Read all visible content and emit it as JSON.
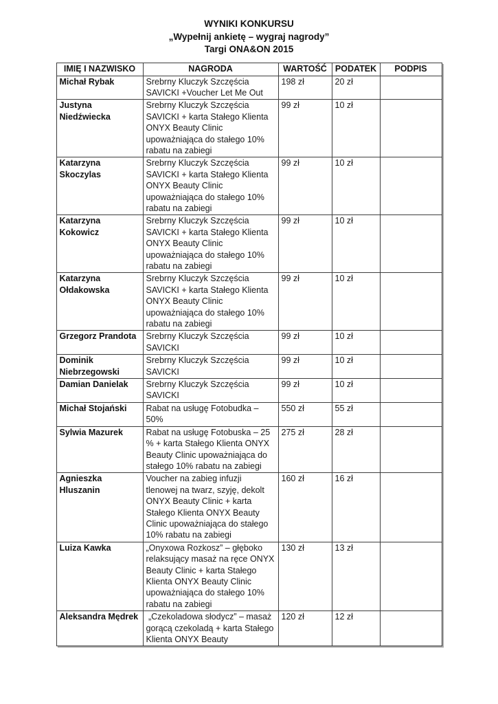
{
  "header": {
    "title": "WYNIKI KONKURSU",
    "subtitle": "„Wypełnij ankietę – wygraj nagrody”",
    "event": "Targi ONA&ON 2015"
  },
  "table": {
    "headers": [
      "IMIĘ I NAZWISKO",
      "NAGRODA",
      "WARTOŚĆ",
      "PODATEK",
      "PODPIS"
    ],
    "rows": [
      {
        "name": "Michał Rybak",
        "prize": "Srebrny Kluczyk Szczęścia SAVICKI +Voucher Let Me Out",
        "value": "198 zł",
        "tax": "20 zł",
        "signature": ""
      },
      {
        "name": "Justyna Niedźwiecka",
        "prize": "Srebrny Kluczyk Szczęścia SAVICKI + karta Stałego Klienta ONYX Beauty Clinic upoważniająca do stałego 10% rabatu na zabiegi",
        "value": "99 zł",
        "tax": "10 zł",
        "signature": ""
      },
      {
        "name": "Katarzyna Skoczylas",
        "prize": "Srebrny Kluczyk Szczęścia SAVICKI + karta Stałego Klienta ONYX Beauty Clinic upoważniająca do stałego 10% rabatu na zabiegi",
        "value": "99 zł",
        "tax": "10 zł",
        "signature": ""
      },
      {
        "name": "Katarzyna Kokowicz",
        "prize": "Srebrny Kluczyk Szczęścia SAVICKI + karta Stałego Klienta ONYX Beauty Clinic upoważniająca do stałego 10% rabatu na zabiegi",
        "value": "99 zł",
        "tax": "10 zł",
        "signature": ""
      },
      {
        "name": "Katarzyna Ołdakowska",
        "prize": "Srebrny Kluczyk Szczęścia SAVICKI + karta Stałego Klienta ONYX Beauty Clinic upoważniająca do stałego 10% rabatu na zabiegi",
        "value": "99 zł",
        "tax": "10 zł",
        "signature": ""
      },
      {
        "name": "Grzegorz Prandota",
        "prize": "Srebrny Kluczyk Szczęścia SAVICKI",
        "value": "99 zł",
        "tax": "10 zł",
        "signature": ""
      },
      {
        "name": "Dominik Niebrzegowski",
        "prize": "Srebrny Kluczyk Szczęścia SAVICKI",
        "value": "99 zł",
        "tax": "10 zł",
        "signature": ""
      },
      {
        "name": "Damian Danielak",
        "prize": "Srebrny Kluczyk Szczęścia SAVICKI",
        "value": "99 zł",
        "tax": "10 zł",
        "signature": ""
      },
      {
        "name": "Michał Stojański",
        "prize": "Rabat na usługę Fotobudka – 50%",
        "value": "550 zł",
        "tax": "55 zł",
        "signature": ""
      },
      {
        "name": "Sylwia Mazurek",
        "prize": "Rabat na usługę Fotobuska – 25 % + karta Stałego Klienta ONYX Beauty Clinic upoważniająca do stałego 10% rabatu na zabiegi",
        "value": "275 zł",
        "tax": "28 zł",
        "signature": ""
      },
      {
        "name": "Agnieszka Hluszanin",
        "prize": "Voucher na zabieg infuzji tlenowej na twarz, szyję, dekolt ONYX Beauty Clinic + karta Stałego Klienta ONYX Beauty Clinic upoważniająca do stałego 10% rabatu na zabiegi",
        "value": "160 zł",
        "tax": "16 zł",
        "signature": ""
      },
      {
        "name": "Luiza Kawka",
        "prize": "„Onyxowa Rozkosz” – głęboko relaksujący masaż na ręce ONYX Beauty Clinic + karta Stałego Klienta ONYX Beauty Clinic upoważniająca do stałego 10% rabatu na zabiegi",
        "value": "130 zł",
        "tax": "13 zł",
        "signature": ""
      },
      {
        "name": "Aleksandra Mędrek",
        "prize": " „Czekoladowa słodycz” – masaż gorącą czekoladą + karta Stałego Klienta ONYX Beauty",
        "value": "120 zł",
        "tax": "12 zł",
        "signature": ""
      }
    ]
  }
}
